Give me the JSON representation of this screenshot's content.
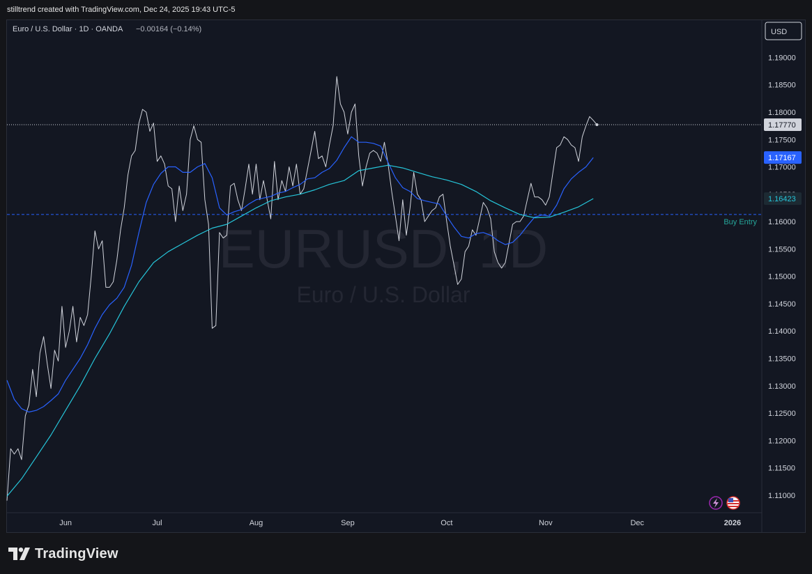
{
  "header": {
    "credit": "stilltrend created with TradingView.com, Dec 24, 2025 19:43 UTC-5"
  },
  "chart_header": {
    "symbol_desc": "Euro / U.S. Dollar · 1D · OANDA",
    "change": "−0.00164 (−0.14%)"
  },
  "currency_button": "USD",
  "watermark": {
    "main": "EURUSD, 1D",
    "sub": "Euro / U.S. Dollar"
  },
  "footer": {
    "brand": "TradingView"
  },
  "colors": {
    "background": "#131722",
    "price_line": "#d1d4dc",
    "ma_fast": "#2962ff",
    "ma_slow": "#26c6da",
    "buy_entry": "#2962ff",
    "buy_entry_label": "#26a69a"
  },
  "chart_data": {
    "type": "line",
    "y_axis": {
      "range": [
        1.1068,
        1.1968
      ],
      "ticks": [
        "1.19000",
        "1.18500",
        "1.18000",
        "1.17500",
        "1.17000",
        "1.16500",
        "1.16000",
        "1.15500",
        "1.15000",
        "1.14500",
        "1.14000",
        "1.13500",
        "1.13000",
        "1.12500",
        "1.12000",
        "1.11500",
        "1.11000"
      ],
      "tick_values": [
        1.19,
        1.185,
        1.18,
        1.175,
        1.17,
        1.165,
        1.16,
        1.155,
        1.15,
        1.145,
        1.14,
        1.135,
        1.13,
        1.125,
        1.12,
        1.115,
        1.11
      ]
    },
    "x_axis": {
      "range": [
        0,
        206
      ],
      "labels": [
        {
          "text": "Jun",
          "x": 16
        },
        {
          "text": "Jul",
          "x": 41
        },
        {
          "text": "Aug",
          "x": 68
        },
        {
          "text": "Sep",
          "x": 93
        },
        {
          "text": "Oct",
          "x": 120
        },
        {
          "text": "Nov",
          "x": 147
        },
        {
          "text": "Dec",
          "x": 172
        },
        {
          "text": "2026",
          "x": 198
        }
      ]
    },
    "price_labels": {
      "last": "1.17770",
      "ma_fast": "1.17167",
      "ma_slow": "1.16423",
      "hidden": "1.16500"
    },
    "horizontal_lines": [
      {
        "name": "Last price",
        "value": 1.1777,
        "style": "dotted"
      },
      {
        "name": "Buy Entry",
        "value": 1.1613,
        "style": "dashed",
        "label": "Buy Entry"
      }
    ],
    "series": [
      {
        "name": "EURUSD",
        "points": [
          [
            0,
            1.109
          ],
          [
            1,
            1.1185
          ],
          [
            2,
            1.1175
          ],
          [
            3,
            1.1185
          ],
          [
            4,
            1.1165
          ],
          [
            5,
            1.1245
          ],
          [
            6,
            1.1265
          ],
          [
            7,
            1.133
          ],
          [
            8,
            1.128
          ],
          [
            9,
            1.136
          ],
          [
            10,
            1.139
          ],
          [
            11,
            1.134
          ],
          [
            12,
            1.1295
          ],
          [
            13,
            1.1365
          ],
          [
            14,
            1.1345
          ],
          [
            15,
            1.1445
          ],
          [
            16,
            1.137
          ],
          [
            17,
            1.14
          ],
          [
            18,
            1.1445
          ],
          [
            19,
            1.138
          ],
          [
            20,
            1.1425
          ],
          [
            21,
            1.141
          ],
          [
            22,
            1.143
          ],
          [
            23,
            1.15
          ],
          [
            24,
            1.1583
          ],
          [
            25,
            1.155
          ],
          [
            26,
            1.1565
          ],
          [
            27,
            1.148
          ],
          [
            28,
            1.148
          ],
          [
            29,
            1.149
          ],
          [
            30,
            1.153
          ],
          [
            31,
            1.1585
          ],
          [
            32,
            1.1625
          ],
          [
            33,
            1.1685
          ],
          [
            34,
            1.172
          ],
          [
            35,
            1.173
          ],
          [
            36,
            1.178
          ],
          [
            37,
            1.1805
          ],
          [
            38,
            1.18
          ],
          [
            39,
            1.1765
          ],
          [
            40,
            1.178
          ],
          [
            41,
            1.171
          ],
          [
            42,
            1.172
          ],
          [
            43,
            1.1705
          ],
          [
            44,
            1.1665
          ],
          [
            45,
            1.166
          ],
          [
            46,
            1.16
          ],
          [
            47,
            1.1665
          ],
          [
            48,
            1.162
          ],
          [
            49,
            1.165
          ],
          [
            50,
            1.175
          ],
          [
            51,
            1.1775
          ],
          [
            52,
            1.175
          ],
          [
            53,
            1.1745
          ],
          [
            54,
            1.164
          ],
          [
            55,
            1.1595
          ],
          [
            56,
            1.1405
          ],
          [
            57,
            1.141
          ],
          [
            58,
            1.158
          ],
          [
            59,
            1.157
          ],
          [
            60,
            1.1575
          ],
          [
            61,
            1.1665
          ],
          [
            62,
            1.167
          ],
          [
            63,
            1.164
          ],
          [
            64,
            1.162
          ],
          [
            65,
            1.166
          ],
          [
            66,
            1.1705
          ],
          [
            67,
            1.165
          ],
          [
            68,
            1.1705
          ],
          [
            69,
            1.164
          ],
          [
            70,
            1.1675
          ],
          [
            71,
            1.164
          ],
          [
            72,
            1.1605
          ],
          [
            73,
            1.171
          ],
          [
            74,
            1.164
          ],
          [
            75,
            1.1675
          ],
          [
            76,
            1.1655
          ],
          [
            77,
            1.17
          ],
          [
            78,
            1.1665
          ],
          [
            79,
            1.1705
          ],
          [
            80,
            1.165
          ],
          [
            81,
            1.166
          ],
          [
            82,
            1.1695
          ],
          [
            83,
            1.173
          ],
          [
            84,
            1.1765
          ],
          [
            85,
            1.1715
          ],
          [
            86,
            1.172
          ],
          [
            87,
            1.17
          ],
          [
            88,
            1.174
          ],
          [
            89,
            1.1775
          ],
          [
            90,
            1.1865
          ],
          [
            91,
            1.1815
          ],
          [
            92,
            1.18
          ],
          [
            93,
            1.176
          ],
          [
            94,
            1.18
          ],
          [
            95,
            1.1815
          ],
          [
            96,
            1.172
          ],
          [
            97,
            1.1665
          ],
          [
            98,
            1.17
          ],
          [
            99,
            1.1725
          ],
          [
            100,
            1.173
          ],
          [
            101,
            1.1725
          ],
          [
            102,
            1.171
          ],
          [
            103,
            1.1745
          ],
          [
            104,
            1.1705
          ],
          [
            105,
            1.1655
          ],
          [
            106,
            1.161
          ],
          [
            107,
            1.1565
          ],
          [
            108,
            1.164
          ],
          [
            109,
            1.1575
          ],
          [
            110,
            1.1625
          ],
          [
            111,
            1.169
          ],
          [
            112,
            1.165
          ],
          [
            113,
            1.164
          ],
          [
            114,
            1.16
          ],
          [
            115,
            1.161
          ],
          [
            116,
            1.162
          ],
          [
            117,
            1.1625
          ],
          [
            118,
            1.1645
          ],
          [
            119,
            1.165
          ],
          [
            120,
            1.16
          ],
          [
            121,
            1.1555
          ],
          [
            122,
            1.152
          ],
          [
            123,
            1.1485
          ],
          [
            124,
            1.1495
          ],
          [
            125,
            1.1545
          ],
          [
            126,
            1.1555
          ],
          [
            127,
            1.1585
          ],
          [
            128,
            1.1575
          ],
          [
            129,
            1.1605
          ],
          [
            130,
            1.1635
          ],
          [
            131,
            1.1625
          ],
          [
            132,
            1.1605
          ],
          [
            133,
            1.1545
          ],
          [
            134,
            1.1525
          ],
          [
            135,
            1.1515
          ],
          [
            136,
            1.1525
          ],
          [
            137,
            1.156
          ],
          [
            138,
            1.1595
          ],
          [
            139,
            1.16
          ],
          [
            140,
            1.16
          ],
          [
            141,
            1.161
          ],
          [
            142,
            1.164
          ],
          [
            143,
            1.167
          ],
          [
            144,
            1.1645
          ],
          [
            145,
            1.1645
          ],
          [
            146,
            1.164
          ],
          [
            147,
            1.163
          ],
          [
            148,
            1.1645
          ],
          [
            149,
            1.169
          ],
          [
            150,
            1.1735
          ],
          [
            151,
            1.174
          ],
          [
            152,
            1.1755
          ],
          [
            153,
            1.175
          ],
          [
            154,
            1.174
          ],
          [
            155,
            1.1735
          ],
          [
            156,
            1.171
          ],
          [
            157,
            1.1755
          ],
          [
            158,
            1.1775
          ],
          [
            159,
            1.1792
          ],
          [
            160,
            1.1785
          ],
          [
            161,
            1.1777
          ]
        ]
      },
      {
        "name": "MA fast",
        "points": [
          [
            0,
            1.131
          ],
          [
            2,
            1.1275
          ],
          [
            4,
            1.1258
          ],
          [
            6,
            1.1252
          ],
          [
            8,
            1.1255
          ],
          [
            10,
            1.1262
          ],
          [
            12,
            1.1273
          ],
          [
            14,
            1.1285
          ],
          [
            16,
            1.131
          ],
          [
            18,
            1.133
          ],
          [
            20,
            1.135
          ],
          [
            22,
            1.1375
          ],
          [
            24,
            1.1405
          ],
          [
            26,
            1.143
          ],
          [
            28,
            1.1448
          ],
          [
            30,
            1.146
          ],
          [
            32,
            1.148
          ],
          [
            34,
            1.152
          ],
          [
            36,
            1.158
          ],
          [
            38,
            1.1635
          ],
          [
            40,
            1.1668
          ],
          [
            42,
            1.1688
          ],
          [
            44,
            1.17
          ],
          [
            46,
            1.17
          ],
          [
            48,
            1.169
          ],
          [
            50,
            1.169
          ],
          [
            52,
            1.17
          ],
          [
            54,
            1.1706
          ],
          [
            56,
            1.168
          ],
          [
            58,
            1.1625
          ],
          [
            60,
            1.1612
          ],
          [
            62,
            1.1618
          ],
          [
            64,
            1.1622
          ],
          [
            66,
            1.1632
          ],
          [
            68,
            1.164
          ],
          [
            70,
            1.1643
          ],
          [
            72,
            1.1646
          ],
          [
            74,
            1.1652
          ],
          [
            76,
            1.1655
          ],
          [
            78,
            1.1662
          ],
          [
            80,
            1.1668
          ],
          [
            82,
            1.1678
          ],
          [
            84,
            1.168
          ],
          [
            86,
            1.169
          ],
          [
            88,
            1.1697
          ],
          [
            90,
            1.1712
          ],
          [
            92,
            1.1735
          ],
          [
            94,
            1.1755
          ],
          [
            96,
            1.1745
          ],
          [
            98,
            1.1745
          ],
          [
            100,
            1.1743
          ],
          [
            102,
            1.1738
          ],
          [
            104,
            1.1708
          ],
          [
            106,
            1.168
          ],
          [
            108,
            1.1662
          ],
          [
            110,
            1.1655
          ],
          [
            112,
            1.1642
          ],
          [
            114,
            1.1638
          ],
          [
            116,
            1.1635
          ],
          [
            118,
            1.1632
          ],
          [
            120,
            1.161
          ],
          [
            122,
            1.159
          ],
          [
            124,
            1.1573
          ],
          [
            126,
            1.157
          ],
          [
            128,
            1.1578
          ],
          [
            130,
            1.158
          ],
          [
            132,
            1.1575
          ],
          [
            134,
            1.1565
          ],
          [
            136,
            1.1558
          ],
          [
            138,
            1.1562
          ],
          [
            140,
            1.1575
          ],
          [
            142,
            1.1592
          ],
          [
            144,
            1.1608
          ],
          [
            146,
            1.1612
          ],
          [
            148,
            1.161
          ],
          [
            150,
            1.163
          ],
          [
            152,
            1.166
          ],
          [
            154,
            1.1678
          ],
          [
            156,
            1.169
          ],
          [
            158,
            1.17
          ],
          [
            160,
            1.1717
          ]
        ]
      },
      {
        "name": "MA slow",
        "points": [
          [
            0,
            1.1098
          ],
          [
            4,
            1.113
          ],
          [
            8,
            1.117
          ],
          [
            12,
            1.121
          ],
          [
            16,
            1.1255
          ],
          [
            20,
            1.13
          ],
          [
            24,
            1.135
          ],
          [
            28,
            1.1395
          ],
          [
            32,
            1.1445
          ],
          [
            36,
            1.149
          ],
          [
            40,
            1.1525
          ],
          [
            44,
            1.1545
          ],
          [
            48,
            1.156
          ],
          [
            52,
            1.1575
          ],
          [
            56,
            1.1588
          ],
          [
            60,
            1.1595
          ],
          [
            64,
            1.161
          ],
          [
            68,
            1.1625
          ],
          [
            72,
            1.1638
          ],
          [
            76,
            1.1645
          ],
          [
            80,
            1.165
          ],
          [
            84,
            1.1658
          ],
          [
            88,
            1.1668
          ],
          [
            92,
            1.1675
          ],
          [
            96,
            1.1693
          ],
          [
            100,
            1.1698
          ],
          [
            104,
            1.1703
          ],
          [
            108,
            1.1698
          ],
          [
            112,
            1.169
          ],
          [
            116,
            1.1682
          ],
          [
            120,
            1.1676
          ],
          [
            124,
            1.1668
          ],
          [
            128,
            1.1655
          ],
          [
            132,
            1.1638
          ],
          [
            136,
            1.1625
          ],
          [
            140,
            1.1613
          ],
          [
            144,
            1.1607
          ],
          [
            148,
            1.1608
          ],
          [
            152,
            1.1617
          ],
          [
            156,
            1.1627
          ],
          [
            160,
            1.1642
          ]
        ]
      }
    ],
    "grid": false,
    "legend": "none"
  }
}
